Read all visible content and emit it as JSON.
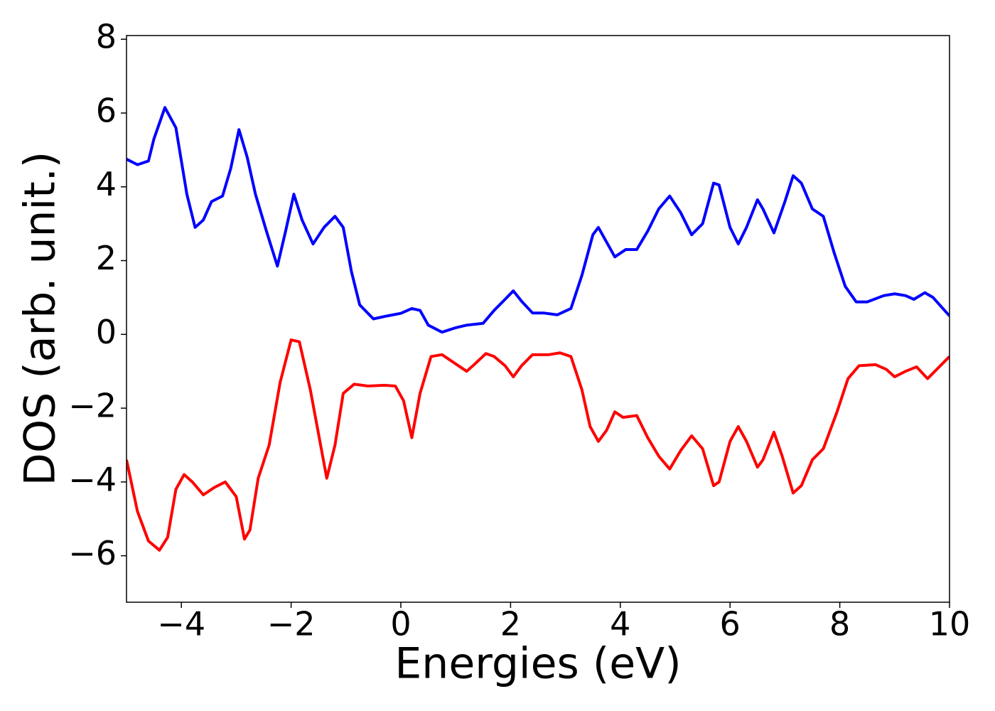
{
  "chart_data": {
    "type": "line",
    "xlabel": "Energies (eV)",
    "ylabel": "DOS (arb. unit.)",
    "xlim": [
      -5,
      10
    ],
    "ylim": [
      -7.26,
      8.1
    ],
    "xticks": [
      {
        "value": -4,
        "label": "−4"
      },
      {
        "value": -2,
        "label": "−2"
      },
      0,
      2,
      4,
      6,
      8,
      10
    ],
    "yticks": [
      {
        "value": -6,
        "label": "−6"
      },
      {
        "value": -4,
        "label": "−4"
      },
      {
        "value": -2,
        "label": "−2"
      },
      0,
      2,
      4,
      6,
      8
    ],
    "series": [
      {
        "color": "#0000ff",
        "x": [
          -5,
          -4.8,
          -4.6,
          -4.5,
          -4.3,
          -4.1,
          -3.9,
          -3.75,
          -3.6,
          -3.45,
          -3.25,
          -3.1,
          -2.95,
          -2.8,
          -2.65,
          -2.45,
          -2.25,
          -2.1,
          -1.95,
          -1.8,
          -1.6,
          -1.4,
          -1.2,
          -1.05,
          -0.9,
          -0.75,
          -0.5,
          -0.25,
          0,
          0.2,
          0.35,
          0.5,
          0.75,
          1,
          1.2,
          1.5,
          1.7,
          1.9,
          2.05,
          2.2,
          2.4,
          2.6,
          2.85,
          3.1,
          3.3,
          3.5,
          3.6,
          3.75,
          3.9,
          4.1,
          4.3,
          4.5,
          4.7,
          4.9,
          5.1,
          5.3,
          5.5,
          5.7,
          5.8,
          6,
          6.15,
          6.3,
          6.5,
          6.6,
          6.8,
          7,
          7.15,
          7.3,
          7.5,
          7.7,
          7.9,
          8.1,
          8.3,
          8.5,
          8.8,
          9,
          9.2,
          9.35,
          9.55,
          9.7,
          10
        ],
        "values": [
          4.75,
          4.6,
          4.7,
          5.3,
          6.15,
          5.6,
          3.8,
          2.9,
          3.1,
          3.6,
          3.75,
          4.5,
          5.55,
          4.8,
          3.8,
          2.8,
          1.85,
          2.8,
          3.8,
          3.1,
          2.45,
          2.9,
          3.2,
          2.9,
          1.7,
          0.8,
          0.42,
          0.5,
          0.57,
          0.7,
          0.65,
          0.25,
          0.06,
          0.18,
          0.25,
          0.3,
          0.65,
          0.95,
          1.18,
          0.9,
          0.58,
          0.58,
          0.53,
          0.7,
          1.6,
          2.7,
          2.9,
          2.5,
          2.1,
          2.3,
          2.3,
          2.8,
          3.4,
          3.75,
          3.3,
          2.7,
          3.0,
          4.1,
          4.05,
          2.9,
          2.45,
          2.9,
          3.65,
          3.4,
          2.75,
          3.6,
          4.3,
          4.1,
          3.4,
          3.2,
          2.2,
          1.3,
          0.88,
          0.88,
          1.05,
          1.1,
          1.05,
          0.95,
          1.13,
          1.0,
          0.5
        ]
      },
      {
        "color": "#ff0000",
        "x": [
          -5,
          -4.8,
          -4.6,
          -4.4,
          -4.25,
          -4.1,
          -3.95,
          -3.8,
          -3.6,
          -3.4,
          -3.2,
          -3,
          -2.85,
          -2.75,
          -2.6,
          -2.4,
          -2.2,
          -2,
          -1.85,
          -1.65,
          -1.35,
          -1.2,
          -1.05,
          -0.85,
          -0.6,
          -0.3,
          -0.1,
          0.05,
          0.2,
          0.35,
          0.55,
          0.75,
          1,
          1.2,
          1.35,
          1.55,
          1.7,
          1.9,
          2.05,
          2.2,
          2.4,
          2.7,
          2.9,
          3.1,
          3.3,
          3.45,
          3.6,
          3.75,
          3.9,
          4.05,
          4.3,
          4.5,
          4.7,
          4.9,
          5.1,
          5.3,
          5.5,
          5.7,
          5.8,
          6,
          6.15,
          6.3,
          6.5,
          6.6,
          6.8,
          6.95,
          7.15,
          7.3,
          7.5,
          7.7,
          7.95,
          8.15,
          8.35,
          8.65,
          8.85,
          9,
          9.2,
          9.4,
          9.6,
          9.8,
          10
        ],
        "values": [
          -3.4,
          -4.8,
          -5.6,
          -5.85,
          -5.5,
          -4.2,
          -3.8,
          -4.0,
          -4.35,
          -4.15,
          -4.0,
          -4.4,
          -5.55,
          -5.3,
          -3.9,
          -3.0,
          -1.3,
          -0.15,
          -0.2,
          -1.5,
          -3.9,
          -3.0,
          -1.6,
          -1.35,
          -1.4,
          -1.38,
          -1.4,
          -1.8,
          -2.8,
          -1.6,
          -0.6,
          -0.55,
          -0.8,
          -1.0,
          -0.8,
          -0.52,
          -0.6,
          -0.85,
          -1.15,
          -0.85,
          -0.55,
          -0.55,
          -0.5,
          -0.6,
          -1.5,
          -2.5,
          -2.9,
          -2.6,
          -2.1,
          -2.25,
          -2.2,
          -2.8,
          -3.3,
          -3.65,
          -3.15,
          -2.75,
          -3.1,
          -4.1,
          -4.0,
          -2.9,
          -2.5,
          -2.9,
          -3.6,
          -3.4,
          -2.65,
          -3.3,
          -4.3,
          -4.1,
          -3.4,
          -3.1,
          -2.1,
          -1.2,
          -0.85,
          -0.82,
          -0.95,
          -1.15,
          -1.0,
          -0.88,
          -1.2,
          -0.9,
          -0.6
        ]
      }
    ]
  }
}
